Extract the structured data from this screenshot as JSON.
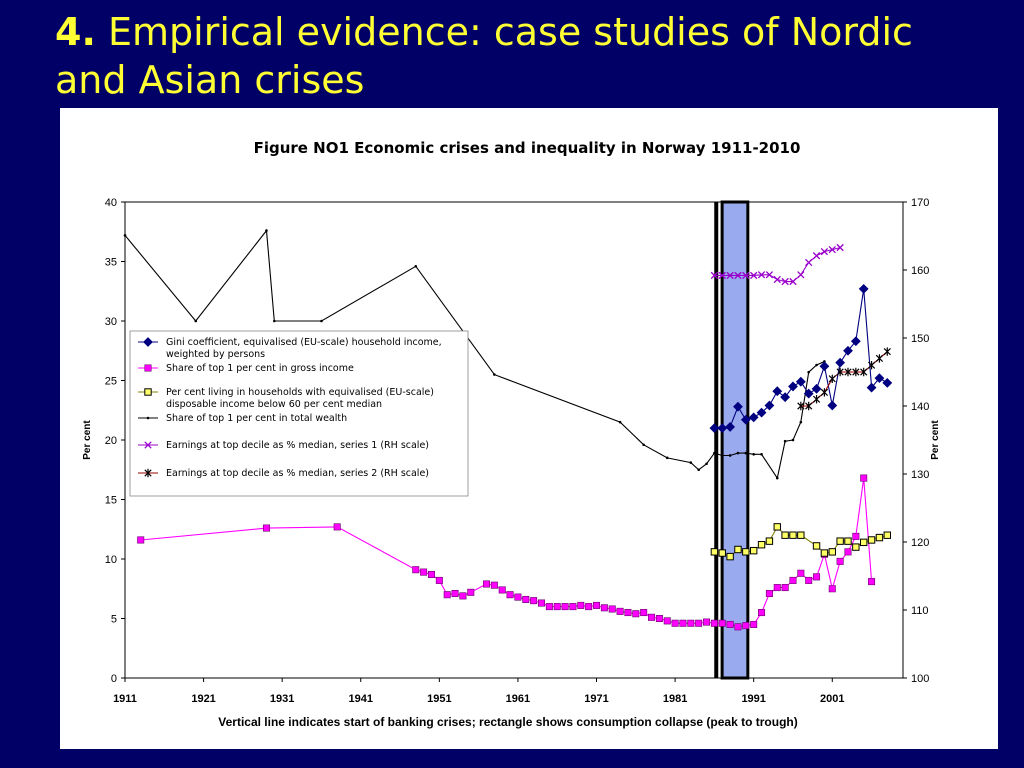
{
  "slide": {
    "title_number": "4.",
    "title_line1": "Empirical evidence: case studies of Nordic",
    "title_line2": "and Asian crises"
  },
  "chart_data": {
    "type": "line",
    "title": "Figure NO1 Economic crises and inequality in Norway 1911-2010",
    "caption": "Vertical line indicates start of banking crises; rectangle shows consumption collapse (peak to trough)",
    "ylabel_left": "Per cent",
    "ylabel_right": "Per cent",
    "ylim_left": [
      0,
      40
    ],
    "ylim_right": [
      100,
      170
    ],
    "y_ticks_left": [
      "0",
      "5",
      "10",
      "15",
      "20",
      "25",
      "30",
      "35",
      "40"
    ],
    "y_ticks_right": [
      "100",
      "110",
      "120",
      "130",
      "140",
      "150",
      "160",
      "170"
    ],
    "x_ticks": [
      "1911",
      "1921",
      "1931",
      "1941",
      "1951",
      "1961",
      "1971",
      "1981",
      "1991",
      "2001"
    ],
    "xlim": [
      1911,
      2010
    ],
    "banking_crisis_start": 1987,
    "consumption_collapse": [
      1988,
      1990
    ],
    "series": [
      {
        "name": "Gini coefficient, equivalised (EU-scale) household income, weighted by persons",
        "axis": "left",
        "color": "#000080",
        "marker": "diamond",
        "x": [
          1986,
          1987,
          1988,
          1989,
          1990,
          1991,
          1992,
          1993,
          1994,
          1995,
          1996,
          1997,
          1998,
          1999,
          2000,
          2001,
          2002,
          2003,
          2004,
          2005,
          2006,
          2007,
          2008
        ],
        "y": [
          21.0,
          21.0,
          21.1,
          22.8,
          21.7,
          21.9,
          22.3,
          22.9,
          24.1,
          23.6,
          24.5,
          24.9,
          23.9,
          24.3,
          26.2,
          22.9,
          26.5,
          27.5,
          28.3,
          32.7,
          24.4,
          25.2,
          24.8
        ]
      },
      {
        "name": "Share of top 1 per cent in gross income",
        "axis": "left",
        "color": "#FF00FF",
        "marker": "square",
        "x": [
          1913,
          1929,
          1938,
          1948,
          1949,
          1950,
          1951,
          1952,
          1953,
          1954,
          1955,
          1957,
          1958,
          1959,
          1960,
          1961,
          1962,
          1963,
          1964,
          1965,
          1966,
          1967,
          1968,
          1969,
          1970,
          1971,
          1972,
          1973,
          1974,
          1975,
          1976,
          1977,
          1978,
          1979,
          1980,
          1981,
          1982,
          1983,
          1984,
          1985,
          1986,
          1987,
          1988,
          1989,
          1990,
          1991,
          1992,
          1993,
          1994,
          1995,
          1996,
          1997,
          1998,
          1999,
          2000,
          2001,
          2002,
          2003,
          2004,
          2005,
          2006
        ],
        "y": [
          11.6,
          12.6,
          12.7,
          9.1,
          8.9,
          8.7,
          8.2,
          7.0,
          7.1,
          6.9,
          7.2,
          7.9,
          7.8,
          7.4,
          7.0,
          6.8,
          6.6,
          6.5,
          6.3,
          6.0,
          6.0,
          6.0,
          6.0,
          6.1,
          6.0,
          6.1,
          5.9,
          5.8,
          5.6,
          5.5,
          5.4,
          5.5,
          5.1,
          5.0,
          4.8,
          4.6,
          4.6,
          4.6,
          4.6,
          4.7,
          4.6,
          4.6,
          4.5,
          4.3,
          4.4,
          4.5,
          5.5,
          7.1,
          7.6,
          7.6,
          8.2,
          8.8,
          8.2,
          8.5,
          10.4,
          7.5,
          9.8,
          10.6,
          11.9,
          16.8,
          8.1
        ]
      },
      {
        "name": "Per cent living in households with equivalised (EU-scale) disposable income below 60 per cent median",
        "axis": "left",
        "color": "#808000",
        "marker": "square-open",
        "x": [
          1986,
          1987,
          1988,
          1989,
          1990,
          1991,
          1992,
          1993,
          1994,
          1995,
          1996,
          1997,
          1999,
          2000,
          2001,
          2002,
          2003,
          2004,
          2005,
          2006,
          2007,
          2008
        ],
        "y": [
          10.6,
          10.5,
          10.2,
          10.8,
          10.6,
          10.7,
          11.2,
          11.5,
          12.7,
          12.0,
          12.0,
          12.0,
          11.1,
          10.5,
          10.6,
          11.5,
          11.5,
          11.0,
          11.4,
          11.6,
          11.8,
          12.0
        ]
      },
      {
        "name": "Share of top 1 per cent in total wealth",
        "axis": "left",
        "color": "#000000",
        "marker": "dot",
        "x": [
          1911,
          1920,
          1929,
          1930,
          1936,
          1948,
          1958,
          1974,
          1977,
          1980,
          1983,
          1984,
          1985,
          1986,
          1987,
          1988,
          1989,
          1990,
          1991,
          1992,
          1994,
          1995,
          1996,
          1997,
          1998,
          1999,
          2000
        ],
        "y": [
          37.2,
          30.0,
          37.6,
          30.0,
          30.0,
          34.6,
          25.5,
          21.5,
          19.6,
          18.5,
          18.1,
          17.5,
          18.0,
          18.9,
          18.7,
          18.7,
          18.9,
          18.9,
          18.8,
          18.8,
          16.8,
          19.9,
          20.0,
          21.5,
          25.7,
          26.3,
          26.6
        ]
      },
      {
        "name": "Earnings at top decile as % median, series 1 (RH scale)",
        "axis": "right",
        "color": "#9900CC",
        "marker": "cross",
        "x": [
          1986,
          1987,
          1988,
          1989,
          1990,
          1991,
          1992,
          1993,
          1994,
          1995,
          1996,
          1997,
          1998,
          1999,
          2000,
          2001,
          2002
        ],
        "y": [
          159.2,
          159.2,
          159.2,
          159.2,
          159.2,
          159.2,
          159.3,
          159.3,
          158.6,
          158.3,
          158.3,
          159.3,
          161.1,
          162.1,
          162.7,
          163.0,
          163.3
        ]
      },
      {
        "name": "Earnings at top decile as % median, series 2 (RH scale)",
        "axis": "right",
        "color": "#990000",
        "marker": "star",
        "x": [
          1997,
          1998,
          1999,
          2000,
          2001,
          2002,
          2003,
          2004,
          2005,
          2006,
          2007,
          2008
        ],
        "y": [
          140.0,
          140.0,
          141.0,
          142.0,
          144.0,
          145.0,
          145.0,
          145.0,
          145.0,
          146.0,
          147.0,
          148.0
        ]
      }
    ]
  }
}
